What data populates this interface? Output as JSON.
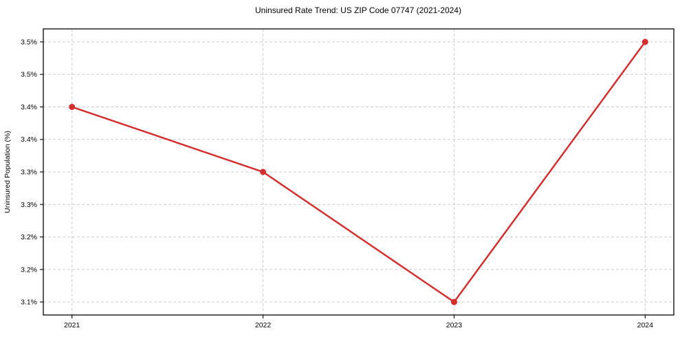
{
  "chart_data": {
    "type": "line",
    "title": "Uninsured Rate Trend: US ZIP Code 07747 (2021-2024)",
    "xlabel": "",
    "ylabel": "Uninsured Population (%)",
    "x": [
      2021,
      2022,
      2023,
      2024
    ],
    "series": [
      {
        "name": "Uninsured rate",
        "values": [
          3.4,
          3.3,
          3.1,
          3.5
        ]
      }
    ],
    "x_tick_labels": [
      "2021",
      "2022",
      "2023",
      "2024"
    ],
    "y_ticks": [
      3.5,
      3.45,
      3.4,
      3.35,
      3.3,
      3.25,
      3.2,
      3.15,
      3.1
    ],
    "y_tick_labels": [
      "3.5%",
      "3.5%",
      "3.4%",
      "3.4%",
      "3.3%",
      "3.3%",
      "3.2%",
      "3.2%",
      "3.1%"
    ],
    "xlim": [
      2020.85,
      2024.15
    ],
    "ylim": [
      3.08,
      3.52
    ],
    "grid": true,
    "legend": "none",
    "line_color": "#d32f2f",
    "marker_color": "#d32f2f",
    "grid_color": "#cccccc",
    "axis_color": "#000000"
  }
}
